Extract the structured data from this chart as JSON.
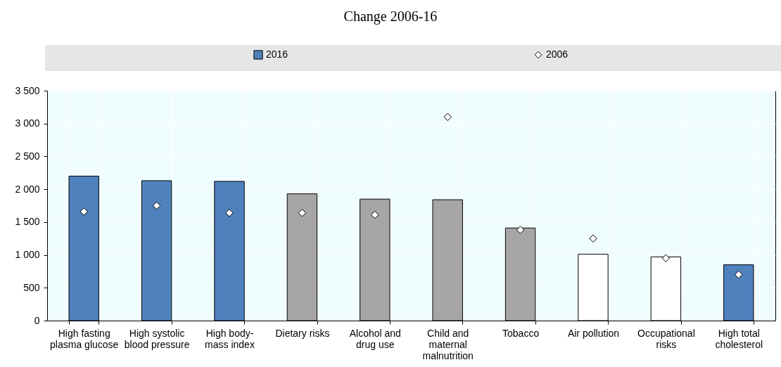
{
  "chart_data": {
    "type": "bar",
    "title": "Change 2006-16",
    "categories": [
      "High fasting\nplasma glucose",
      "High systolic\nblood pressure",
      "High body-\nmass index",
      "Dietary risks",
      "Alcohol and\ndrug use",
      "Child and\nmaternal\nmalnutrition",
      "Tobacco",
      "Air pollution",
      "Occupational\nrisks",
      "High total\ncholesterol"
    ],
    "series": [
      {
        "name": "2016",
        "color": "#4f81bd",
        "colors": [
          "#4f81bd",
          "#4f81bd",
          "#4f81bd",
          "#a6a6a6",
          "#a6a6a6",
          "#a6a6a6",
          "#a6a6a6",
          "#ffffff",
          "#ffffff",
          "#4f81bd"
        ],
        "values": [
          2200,
          2130,
          2120,
          1930,
          1850,
          1840,
          1410,
          1010,
          970,
          850
        ]
      },
      {
        "name": "2006",
        "type": "scatter",
        "color": "#ffffff",
        "marker": "diamond",
        "values": [
          1660,
          1750,
          1640,
          1640,
          1610,
          3100,
          1380,
          1250,
          950,
          700
        ]
      }
    ],
    "ylim": [
      0,
      3500
    ],
    "yticks": [
      0,
      {
        "value": 500,
        "label": "500"
      },
      {
        "value": 1000,
        "label": "1 000"
      },
      {
        "value": 1500,
        "label": "1 500"
      },
      {
        "value": 2000,
        "label": "2 000"
      },
      {
        "value": 2500,
        "label": "2 500"
      },
      {
        "value": 3000,
        "label": "3 000"
      },
      {
        "value": 3500,
        "label": "3 500"
      }
    ],
    "grid": true,
    "legend": "top"
  }
}
